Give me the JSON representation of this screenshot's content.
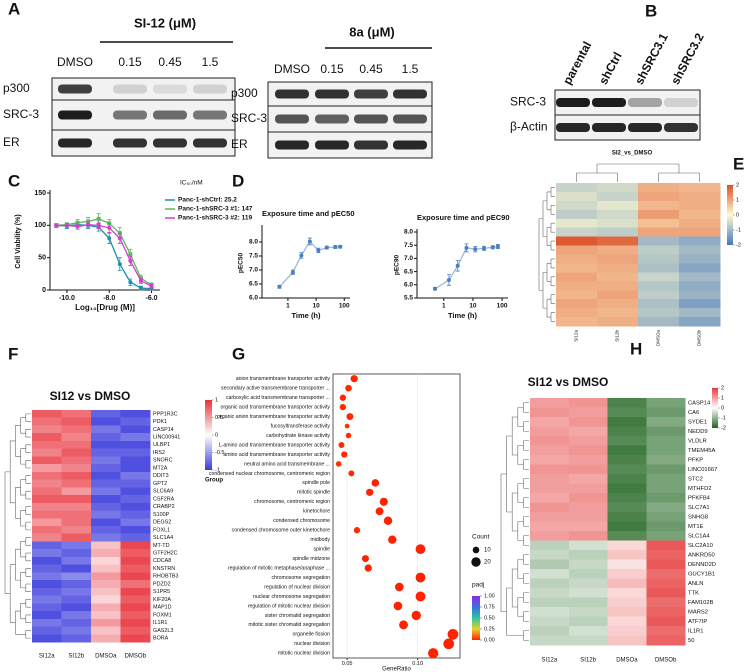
{
  "panel_labels": [
    "A",
    "B",
    "C",
    "D",
    "E",
    "F",
    "G",
    "H"
  ],
  "blot_a": [
    {
      "header": "SI-12 (μM)",
      "lanes": [
        "DMSO",
        "0.15",
        "0.45",
        "1.5"
      ],
      "rows": [
        "p300",
        "SRC-3",
        "ER"
      ]
    },
    {
      "header": "8a (μM)",
      "lanes": [
        "DMSO",
        "0.15",
        "0.45",
        "1.5"
      ],
      "rows": [
        "p300",
        "SRC-3",
        "ER"
      ]
    }
  ],
  "blot_b": {
    "lanes": [
      "parental",
      "shCtrl",
      "shSRC3.1",
      "shSRC3.2"
    ],
    "rows": [
      "SRC-3",
      "β-Actin"
    ]
  },
  "chart_data": [
    {
      "type": "line",
      "ylabel": "Cell Viability (%)",
      "xlabel": "Log₁₀[Drug (M)]",
      "legend_title": "IC₅₀/nM",
      "x": [
        -10.5,
        -10,
        -9.5,
        -9,
        -8.5,
        -8,
        -7.5,
        -7,
        -6.5,
        -6
      ],
      "xlim": [
        -10.8,
        -5.6
      ],
      "xticks": [
        {
          "value": -10,
          "label": "-10.0"
        },
        {
          "value": -8,
          "label": "-8.0"
        },
        {
          "value": -6,
          "label": "-6.0"
        }
      ],
      "ylim": [
        0,
        150
      ],
      "yticks": [
        0,
        50,
        100,
        150
      ],
      "series": [
        {
          "name": "Panc-1-shCtrl: 25.2",
          "color": "#1f8fb0",
          "values": [
            100,
            99,
            101,
            100,
            97,
            80,
            40,
            12,
            3,
            2
          ],
          "errors": [
            3,
            4,
            3,
            5,
            6,
            8,
            10,
            5,
            3,
            2
          ]
        },
        {
          "name": "Panc-1-shSRC-3 #1: 147",
          "color": "#5cb85c",
          "values": [
            100,
            101,
            104,
            106,
            110,
            103,
            88,
            55,
            18,
            8
          ],
          "errors": [
            3,
            3,
            5,
            6,
            8,
            6,
            9,
            8,
            5,
            3
          ]
        },
        {
          "name": "Panc-1-shSRC-3 #2: 119",
          "color": "#d03fd0",
          "values": [
            99,
            100,
            98,
            101,
            100,
            96,
            80,
            45,
            14,
            6
          ],
          "errors": [
            2,
            3,
            4,
            4,
            5,
            7,
            8,
            7,
            4,
            3
          ]
        }
      ]
    },
    {
      "type": "line",
      "title": "Exposure time and pEC50",
      "xlabel": "Time (h)",
      "ylabel": "pEC50",
      "xscale": "log",
      "x": [
        0.5,
        1.5,
        3,
        6,
        12,
        24,
        48,
        72
      ],
      "xlim": [
        0.12,
        160
      ],
      "xticks": [
        1,
        10,
        100
      ],
      "ylim": [
        6,
        8.5
      ],
      "yticks": [
        {
          "value": 6,
          "label": "6.0"
        },
        {
          "value": 6.5,
          "label": "6.5"
        },
        {
          "value": 7,
          "label": "7.0"
        },
        {
          "value": 7.5,
          "label": "7.5"
        },
        {
          "value": 8,
          "label": "8.0"
        }
      ],
      "color": "#4a7fc0",
      "values": [
        6.4,
        6.92,
        7.52,
        8.02,
        7.7,
        7.8,
        7.82,
        7.83
      ],
      "errors": [
        0.05,
        0.08,
        0.1,
        0.12,
        0.08,
        0.05,
        0.05,
        0.05
      ]
    },
    {
      "type": "line",
      "title": "Exposure time and pEC90",
      "xlabel": "Time (h)",
      "ylabel": "pEC90",
      "xscale": "log",
      "x": [
        0.5,
        1.5,
        3,
        6,
        12,
        24,
        48,
        72
      ],
      "xlim": [
        0.12,
        160
      ],
      "xticks": [
        1,
        10,
        100
      ],
      "ylim": [
        5.5,
        8
      ],
      "yticks": [
        {
          "value": 5.5,
          "label": "5.5"
        },
        {
          "value": 6,
          "label": "6.0"
        },
        {
          "value": 6.5,
          "label": "6.5"
        },
        {
          "value": 7,
          "label": "7.0"
        },
        {
          "value": 7.5,
          "label": "7.5"
        },
        {
          "value": 8,
          "label": "8.0"
        }
      ],
      "color": "#4a7fc0",
      "values": [
        5.85,
        6.18,
        6.72,
        7.4,
        7.35,
        7.38,
        7.42,
        7.45
      ],
      "errors": [
        0.05,
        0.2,
        0.2,
        0.15,
        0.1,
        0.08,
        0.06,
        0.08
      ]
    },
    {
      "type": "heatmap",
      "title": "SI2_vs_DMSO",
      "columns": [
        "SI12a",
        "SI12b",
        "DMSOa",
        "DMSOb"
      ],
      "colors": [
        "#4678be",
        "#fffacd",
        "#dc5028"
      ],
      "cticks": [
        2,
        1,
        0,
        -1,
        -2
      ],
      "values": [
        [
          -0.6,
          -0.5,
          0.9,
          0.8
        ],
        [
          -0.4,
          -0.6,
          1.0,
          0.9
        ],
        [
          -0.5,
          -0.3,
          0.8,
          0.9
        ],
        [
          -0.7,
          -0.5,
          1.1,
          0.8
        ],
        [
          -0.3,
          -0.4,
          0.7,
          0.9
        ],
        [
          -0.6,
          -0.7,
          1.0,
          1.0
        ],
        [
          1.9,
          1.7,
          -1.0,
          -1.2
        ],
        [
          1.0,
          0.9,
          -0.7,
          -1.0
        ],
        [
          0.9,
          1.0,
          -0.8,
          -1.1
        ],
        [
          0.8,
          0.9,
          -0.9,
          -1.3
        ],
        [
          1.0,
          0.8,
          -0.6,
          -1.0
        ],
        [
          0.9,
          0.9,
          -0.8,
          -1.2
        ],
        [
          0.8,
          1.0,
          -0.7,
          -1.1
        ],
        [
          1.0,
          0.9,
          -0.9,
          -1.4
        ],
        [
          0.9,
          0.8,
          -0.8,
          -1.0
        ],
        [
          0.8,
          0.9,
          -1.0,
          -1.3
        ]
      ]
    },
    {
      "type": "heatmap",
      "title": "SI12 vs DMSO",
      "columns": [
        "SI12a",
        "SI12b",
        "DMSOa",
        "DMSOb"
      ],
      "colors": [
        "#3c3cdc",
        "#ffffff",
        "#e8323c"
      ],
      "cticks": [
        1,
        0.5,
        0,
        -0.5,
        -1
      ],
      "legend_title": "Group",
      "rows": [
        "PPP1R3C",
        "PDK1",
        "CASP14",
        "LINC00941",
        "ULBP1",
        "IRS2",
        "SNORC",
        "MT2A",
        "DDIT3",
        "GPT2",
        "SLC6A9",
        "CSF2RA",
        "CRABP2",
        "S100P",
        "DEGS2",
        "FOXL1",
        "SLC1A4",
        "MT-TD",
        "GTF2H2C",
        "CDCA8",
        "KNSTRN",
        "RHOBTB3",
        "PDZD2",
        "S1PR5",
        "KIF20A",
        "MAP1D",
        "FOXM1",
        "IL1R1",
        "GAS2L3",
        "BORA"
      ],
      "values": [
        [
          0.8,
          0.7,
          -0.8,
          -0.9
        ],
        [
          0.7,
          0.8,
          -0.9,
          -0.8
        ],
        [
          0.6,
          0.7,
          -0.7,
          -0.9
        ],
        [
          0.8,
          0.6,
          -0.8,
          -0.7
        ],
        [
          0.7,
          0.7,
          -0.9,
          -0.9
        ],
        [
          0.6,
          0.8,
          -0.8,
          -0.8
        ],
        [
          0.8,
          0.7,
          -0.7,
          -0.9
        ],
        [
          0.5,
          0.6,
          -0.8,
          -0.9
        ],
        [
          0.7,
          0.8,
          -0.9,
          -0.7
        ],
        [
          0.6,
          0.7,
          -0.8,
          -0.8
        ],
        [
          0.7,
          0.5,
          -0.7,
          -0.9
        ],
        [
          0.8,
          0.8,
          -0.9,
          -0.8
        ],
        [
          0.6,
          0.6,
          -0.8,
          -0.9
        ],
        [
          0.7,
          0.7,
          -0.7,
          -0.8
        ],
        [
          0.5,
          0.7,
          -0.9,
          -0.7
        ],
        [
          0.7,
          0.6,
          -0.8,
          -0.9
        ],
        [
          0.6,
          0.8,
          -0.7,
          -0.8
        ],
        [
          -0.8,
          -0.7,
          0.3,
          0.9
        ],
        [
          -0.7,
          -0.8,
          0.4,
          0.8
        ],
        [
          -0.9,
          -0.7,
          0.2,
          0.9
        ],
        [
          -0.8,
          -0.9,
          0.3,
          0.8
        ],
        [
          -0.7,
          -0.6,
          0.5,
          0.9
        ],
        [
          -0.9,
          -0.8,
          0.4,
          0.7
        ],
        [
          -0.8,
          -0.7,
          0.3,
          0.9
        ],
        [
          -0.7,
          -0.8,
          0.2,
          0.8
        ],
        [
          -0.8,
          -0.9,
          0.4,
          0.9
        ],
        [
          -0.9,
          -0.7,
          0.3,
          0.8
        ],
        [
          -0.7,
          -0.8,
          0.5,
          0.9
        ],
        [
          -0.8,
          -0.7,
          0.3,
          0.8
        ],
        [
          -0.9,
          -0.8,
          0.4,
          0.9
        ]
      ]
    },
    {
      "type": "dot",
      "xlabel": "GeneRatio",
      "xlim": [
        0.04,
        0.13
      ],
      "xticks": [
        0.05,
        {
          "value": 0.1,
          "label": "0.10"
        }
      ],
      "size_title": "Count",
      "size_ticks": [
        10,
        20
      ],
      "color_title": "padj",
      "colors": [
        "#ff2200",
        "#e6d22e",
        "#2ec4a0",
        "#3a6fe0",
        "#8a2be2"
      ],
      "color_ticks": [
        {
          "value": 1,
          "label": "1.00"
        },
        {
          "value": 0.75,
          "label": "0.75"
        },
        {
          "value": 0.5,
          "label": "0.50"
        },
        {
          "value": 0.25,
          "label": "0.25"
        },
        {
          "value": 0,
          "label": "0.00"
        }
      ],
      "categories": [
        "anion transmembrane transporter activity",
        "secondary active transmembrane transporter ...",
        "carboxylic acid transmembrane transporter ...",
        "organic acid transmembrane transporter activity",
        "organic anion transmembrane transporter activity",
        "fucosyltransferase activity",
        "carbohydrate kinase activity",
        "L-amino acid transmembrane transporter activity",
        "amino acid transmembrane transporter activity",
        "neutral amino acid transmembrane ...",
        "condensed nuclear chromosome, centromeric region",
        "spindle pole",
        "mitotic spindle",
        "chromosome, centromeric region",
        "kinetochore",
        "condensed chromosome",
        "condensed chromosome outer kinetochore",
        "midbody",
        "spindle",
        "spindle midzone",
        "regulation of mitotic metaphase/anaphase ...",
        "chromosome segregation",
        "regulation of nuclear division",
        "nuclear chromosome segregation",
        "regulation of mitotic nuclear division",
        "sister chromatid segregation",
        "mitotic sister chromatid segregation",
        "organelle fission",
        "nuclear division",
        "mitotic nuclear division"
      ],
      "values": [
        0.055,
        0.051,
        0.047,
        0.047,
        0.052,
        0.05,
        0.051,
        0.046,
        0.048,
        0.044,
        0.053,
        0.07,
        0.066,
        0.076,
        0.073,
        0.079,
        0.057,
        0.082,
        0.102,
        0.063,
        0.065,
        0.102,
        0.087,
        0.102,
        0.086,
        0.099,
        0.09,
        0.125,
        0.122,
        0.111
      ],
      "counts": [
        12,
        10,
        9,
        9,
        11,
        5,
        7,
        8,
        9,
        7,
        8,
        13,
        12,
        15,
        14,
        16,
        9,
        16,
        22,
        11,
        12,
        22,
        17,
        22,
        17,
        20,
        18,
        26,
        26,
        24
      ],
      "padj": [
        0.01,
        0.01,
        0.01,
        0.01,
        0.01,
        0.02,
        0.02,
        0.01,
        0.01,
        0.02,
        0.01,
        0,
        0,
        0,
        0,
        0,
        0.01,
        0,
        0,
        0,
        0,
        0,
        0,
        0,
        0,
        0,
        0,
        0,
        0,
        0
      ]
    },
    {
      "type": "heatmap",
      "title": "SI12 vs DMSO",
      "columns": [
        "SI12a",
        "SI12b",
        "DMSOa",
        "DMSOb"
      ],
      "colors": [
        "#1e641e",
        "#ffffff",
        "#e63c3c"
      ],
      "cticks": [
        2,
        1,
        0,
        -1,
        -2
      ],
      "rows": [
        "CASP14",
        "CA6",
        "SYDE1",
        "NEDD9",
        "VLDLR",
        "TMEM45A",
        "PFKP",
        "LINC01667",
        "STC2",
        "MTHFD2",
        "PFKFB4",
        "SLC7A1",
        "SNHG8",
        "MT1E",
        "SLC1A4",
        "SLC2A10",
        "ANKRD50",
        "DENND2D",
        "GUCY1B1",
        "ANLN",
        "TTK",
        "FAM102B",
        "MARS2",
        "ATF7IP",
        "IL1R1",
        "50"
      ],
      "values": [
        [
          1.0,
          1.1,
          -1.6,
          -1.2
        ],
        [
          1.1,
          1.0,
          -1.5,
          -1.3
        ],
        [
          0.9,
          1.1,
          -1.7,
          -1.1
        ],
        [
          1.0,
          0.9,
          -1.6,
          -1.3
        ],
        [
          1.1,
          1.0,
          -1.5,
          -1.2
        ],
        [
          1.0,
          1.1,
          -1.7,
          -1.2
        ],
        [
          0.9,
          1.0,
          -1.6,
          -1.1
        ],
        [
          1.1,
          1.1,
          -1.5,
          -1.3
        ],
        [
          1.0,
          0.9,
          -1.6,
          -1.2
        ],
        [
          1.0,
          1.0,
          -1.7,
          -1.2
        ],
        [
          0.9,
          1.1,
          -1.6,
          -1.3
        ],
        [
          1.1,
          1.0,
          -1.5,
          -1.1
        ],
        [
          1.0,
          1.0,
          -1.6,
          -1.2
        ],
        [
          0.9,
          0.9,
          -1.7,
          -1.3
        ],
        [
          1.0,
          1.1,
          -1.5,
          -1.2
        ],
        [
          -0.6,
          -0.4,
          0.4,
          1.7
        ],
        [
          -0.5,
          -0.6,
          0.6,
          1.6
        ],
        [
          -0.7,
          -0.5,
          0.3,
          1.7
        ],
        [
          -0.4,
          -0.6,
          0.5,
          1.5
        ],
        [
          -0.6,
          -0.5,
          0.7,
          1.6
        ],
        [
          -0.5,
          -0.4,
          0.4,
          1.7
        ],
        [
          -0.6,
          -0.6,
          0.5,
          1.5
        ],
        [
          -0.4,
          -0.5,
          0.6,
          1.6
        ],
        [
          -0.5,
          -0.6,
          0.4,
          1.7
        ],
        [
          -0.6,
          -0.4,
          0.5,
          1.5
        ],
        [
          -0.5,
          -0.5,
          0.6,
          1.6
        ]
      ]
    }
  ]
}
